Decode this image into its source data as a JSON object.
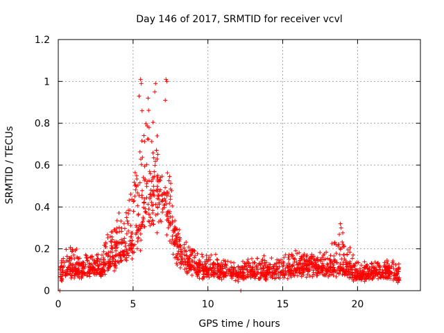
{
  "chart_data": {
    "type": "scatter",
    "title": "Day 146 of 2017, SRMTID for receiver vcvl",
    "xlabel": "GPS time / hours",
    "ylabel": "SRMTID / TECUs",
    "xlim": [
      0,
      24.2
    ],
    "ylim": [
      0,
      1.2
    ],
    "x_ticks": [
      0,
      5,
      10,
      15,
      20
    ],
    "x_tick_labels": [
      "0",
      "5",
      "10",
      "15",
      "20"
    ],
    "y_ticks": [
      0,
      0.2,
      0.4,
      0.6,
      0.8,
      1,
      1.2
    ],
    "y_tick_labels": [
      "0",
      "0.2",
      "0.4",
      "0.6",
      "0.8",
      "1",
      "1.2"
    ],
    "grid": true,
    "marker": "+",
    "series": [
      {
        "name": "SRMTID",
        "color": "#ff0000",
        "envelope": {
          "description": "dense point cloud summarized by median trend and upper/lower spread (hours, TECU)",
          "x": [
            0.1,
            0.5,
            1.0,
            1.5,
            2.0,
            2.5,
            3.0,
            3.5,
            4.0,
            4.5,
            5.0,
            5.5,
            6.0,
            6.5,
            7.0,
            7.5,
            8.0,
            8.5,
            9.0,
            9.5,
            10.0,
            11.0,
            12.0,
            13.0,
            14.0,
            15.0,
            16.0,
            17.0,
            18.0,
            19.0,
            20.0,
            21.0,
            22.0,
            22.8
          ],
          "median": [
            0.08,
            0.1,
            0.11,
            0.09,
            0.1,
            0.11,
            0.1,
            0.16,
            0.18,
            0.2,
            0.24,
            0.33,
            0.45,
            0.5,
            0.45,
            0.36,
            0.18,
            0.14,
            0.12,
            0.11,
            0.1,
            0.09,
            0.08,
            0.09,
            0.09,
            0.09,
            0.11,
            0.12,
            0.11,
            0.11,
            0.07,
            0.09,
            0.09,
            0.07
          ],
          "low": [
            0.03,
            0.05,
            0.05,
            0.05,
            0.06,
            0.06,
            0.06,
            0.08,
            0.1,
            0.13,
            0.15,
            0.18,
            0.25,
            0.28,
            0.25,
            0.2,
            0.08,
            0.07,
            0.06,
            0.05,
            0.05,
            0.05,
            0.04,
            0.05,
            0.04,
            0.05,
            0.06,
            0.06,
            0.06,
            0.06,
            0.03,
            0.05,
            0.04,
            0.03
          ],
          "high": [
            0.15,
            0.2,
            0.26,
            0.18,
            0.2,
            0.19,
            0.2,
            0.33,
            0.38,
            0.4,
            0.55,
            0.8,
            0.95,
            0.8,
            0.7,
            0.55,
            0.3,
            0.26,
            0.22,
            0.19,
            0.18,
            0.17,
            0.14,
            0.18,
            0.17,
            0.18,
            0.21,
            0.19,
            0.2,
            0.31,
            0.14,
            0.15,
            0.16,
            0.14
          ]
        },
        "notable_points": [
          {
            "x": 5.5,
            "y": 1.01
          },
          {
            "x": 5.55,
            "y": 0.99
          },
          {
            "x": 7.2,
            "y": 1.01
          },
          {
            "x": 7.25,
            "y": 1.0
          },
          {
            "x": 6.5,
            "y": 0.99
          },
          {
            "x": 6.45,
            "y": 0.95
          },
          {
            "x": 5.4,
            "y": 0.93
          },
          {
            "x": 5.6,
            "y": 0.86
          },
          {
            "x": 7.15,
            "y": 0.91
          },
          {
            "x": 6.0,
            "y": 0.92
          },
          {
            "x": 18.85,
            "y": 0.32
          },
          {
            "x": 18.9,
            "y": 0.3
          },
          {
            "x": 0.1,
            "y": 0.0
          },
          {
            "x": 12.2,
            "y": 0.0
          }
        ]
      }
    ]
  }
}
